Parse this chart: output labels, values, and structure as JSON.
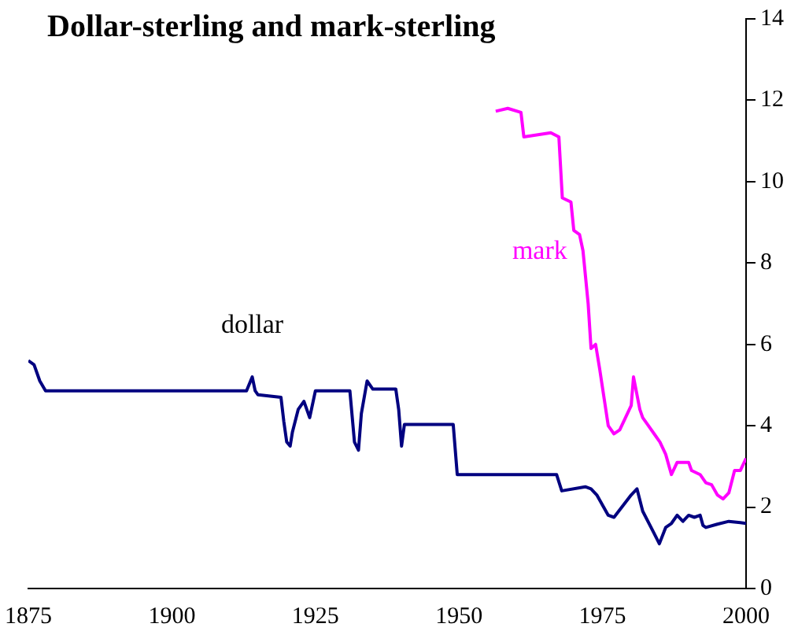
{
  "chart_data": {
    "type": "line",
    "title": "Dollar-sterling and mark-sterling",
    "xlim": [
      1875,
      2000
    ],
    "xticks": [
      1875,
      1900,
      1925,
      1950,
      1975,
      2000
    ],
    "ylim": [
      0,
      14
    ],
    "yticks": [
      0,
      2,
      4,
      6,
      8,
      10,
      12,
      14
    ],
    "grid": false,
    "legend": false,
    "marker": "none",
    "series": [
      {
        "name": "dollar",
        "color": "#000080",
        "x": [
          1875,
          1876,
          1877,
          1878,
          1880,
          1885,
          1890,
          1895,
          1900,
          1905,
          1910,
          1913,
          1914,
          1914.5,
          1915,
          1919,
          1919.5,
          1920,
          1920.6,
          1921,
          1922,
          1923,
          1924,
          1925,
          1931,
          1931.8,
          1932.5,
          1933,
          1934,
          1935,
          1938,
          1939,
          1939.5,
          1940,
          1940.5,
          1949,
          1949.7,
          1967,
          1967.9,
          1972,
          1973,
          1974,
          1976,
          1977,
          1980,
          1981,
          1982,
          1984,
          1984.9,
          1986,
          1987,
          1988,
          1989,
          1990,
          1991,
          1992,
          1992.5,
          1993,
          1995,
          1997,
          1999,
          2000
        ],
        "values": [
          5.6,
          5.5,
          5.1,
          4.86,
          4.86,
          4.86,
          4.86,
          4.86,
          4.86,
          4.86,
          4.86,
          4.86,
          5.2,
          4.86,
          4.76,
          4.7,
          4.1,
          3.6,
          3.5,
          3.85,
          4.4,
          4.6,
          4.2,
          4.86,
          4.86,
          3.6,
          3.4,
          4.3,
          5.1,
          4.9,
          4.9,
          4.9,
          4.4,
          3.5,
          4.03,
          4.03,
          2.8,
          2.8,
          2.4,
          2.5,
          2.45,
          2.3,
          1.8,
          1.75,
          2.3,
          2.45,
          1.9,
          1.35,
          1.1,
          1.5,
          1.6,
          1.8,
          1.65,
          1.8,
          1.75,
          1.8,
          1.55,
          1.5,
          1.58,
          1.65,
          1.62,
          1.6
        ]
      },
      {
        "name": "mark",
        "color": "#ff00ff",
        "x": [
          1956.4,
          1958.5,
          1960.8,
          1961.3,
          1966,
          1967.4,
          1968,
          1969.5,
          1970,
          1971,
          1971.6,
          1972.5,
          1973,
          1973.8,
          1974.5,
          1976,
          1977,
          1978,
          1979,
          1980,
          1980.4,
          1981.5,
          1982,
          1983,
          1984,
          1985,
          1986,
          1987,
          1988,
          1990,
          1990.5,
          1992,
          1993,
          1994,
          1995,
          1996,
          1997,
          1998,
          1999,
          2000
        ],
        "values": [
          11.73,
          11.8,
          11.7,
          11.1,
          11.2,
          11.1,
          9.6,
          9.5,
          8.8,
          8.7,
          8.3,
          7.0,
          5.9,
          6.0,
          5.4,
          4.0,
          3.8,
          3.9,
          4.2,
          4.5,
          5.2,
          4.4,
          4.2,
          4.0,
          3.8,
          3.6,
          3.3,
          2.8,
          3.1,
          3.1,
          2.9,
          2.8,
          2.6,
          2.55,
          2.3,
          2.2,
          2.35,
          2.9,
          2.9,
          3.2
        ]
      }
    ]
  }
}
